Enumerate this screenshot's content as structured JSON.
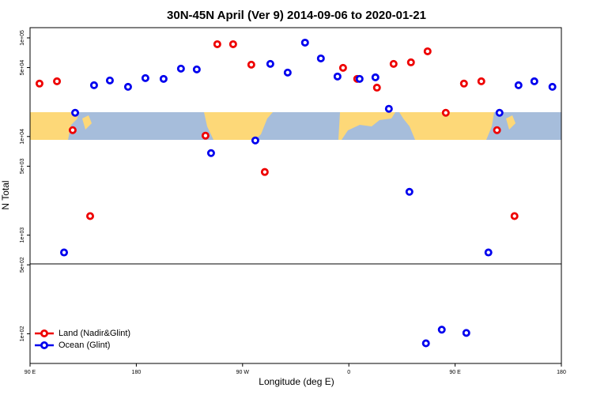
{
  "chart_data": {
    "type": "scatter",
    "title": "30N-45N April (Ver 9)   2014-09-06 to 2020-01-21",
    "xlabel": "Longitude (deg E)",
    "ylabel": "N Total",
    "xlim": [
      90,
      540
    ],
    "ylim": [
      50,
      127000
    ],
    "ylog": true,
    "xticks": [
      {
        "value": 90,
        "label": "90 E"
      },
      180,
      {
        "value": 270,
        "label": "90 W"
      },
      {
        "value": 360,
        "label": "0"
      },
      {
        "value": 450,
        "label": "90 E"
      },
      {
        "value": 540,
        "label": "180"
      }
    ],
    "yticks": [
      {
        "value": 100000,
        "label": "1e+05"
      },
      {
        "value": 50000,
        "label": "5e+04"
      },
      {
        "value": 10000,
        "label": "1e+04"
      },
      {
        "value": 5000,
        "label": "5e+03"
      },
      {
        "value": 1000,
        "label": "1e+03"
      },
      {
        "value": 500,
        "label": "5e+02"
      },
      {
        "value": 100,
        "label": "1e+02"
      }
    ],
    "legend": "bottom-left",
    "series": [
      {
        "name": "Land (Nadir&Glint)",
        "color": "#ee0000",
        "x": [
          98.0,
          112.8,
          126.1,
          140.9,
          238.6,
          248.6,
          262.0,
          277.4,
          288.8,
          355.1,
          367.1,
          383.8,
          397.9,
          412.6,
          426.7,
          442.1,
          457.5,
          472.2,
          485.5,
          500.3
        ],
        "values": [
          34400,
          36300,
          11600,
          1560,
          10200,
          86300,
          86300,
          53500,
          4370,
          49700,
          38400,
          31300,
          54500,
          56500,
          73100,
          17400,
          34400,
          36300,
          11600,
          1560
        ]
      },
      {
        "name": "Ocean (Glint)",
        "color": "#0000ee",
        "x": [
          118.8,
          128.2,
          144.2,
          157.6,
          173.0,
          187.7,
          203.1,
          217.8,
          231.2,
          243.3,
          280.8,
          293.5,
          308.2,
          322.9,
          336.3,
          350.4,
          369.1,
          382.5,
          393.9,
          411.3,
          425.3,
          438.7,
          459.5,
          478.2,
          487.6,
          503.7,
          517.1,
          532.4
        ],
        "values": [
          667,
          17400,
          33100,
          37000,
          31900,
          39100,
          38400,
          48800,
          47900,
          6790,
          9120,
          54500,
          44500,
          89500,
          61900,
          40600,
          38400,
          39800,
          19100,
          2750,
          80,
          110,
          102,
          667,
          17400,
          33100,
          36300,
          31900
        ]
      }
    ]
  }
}
